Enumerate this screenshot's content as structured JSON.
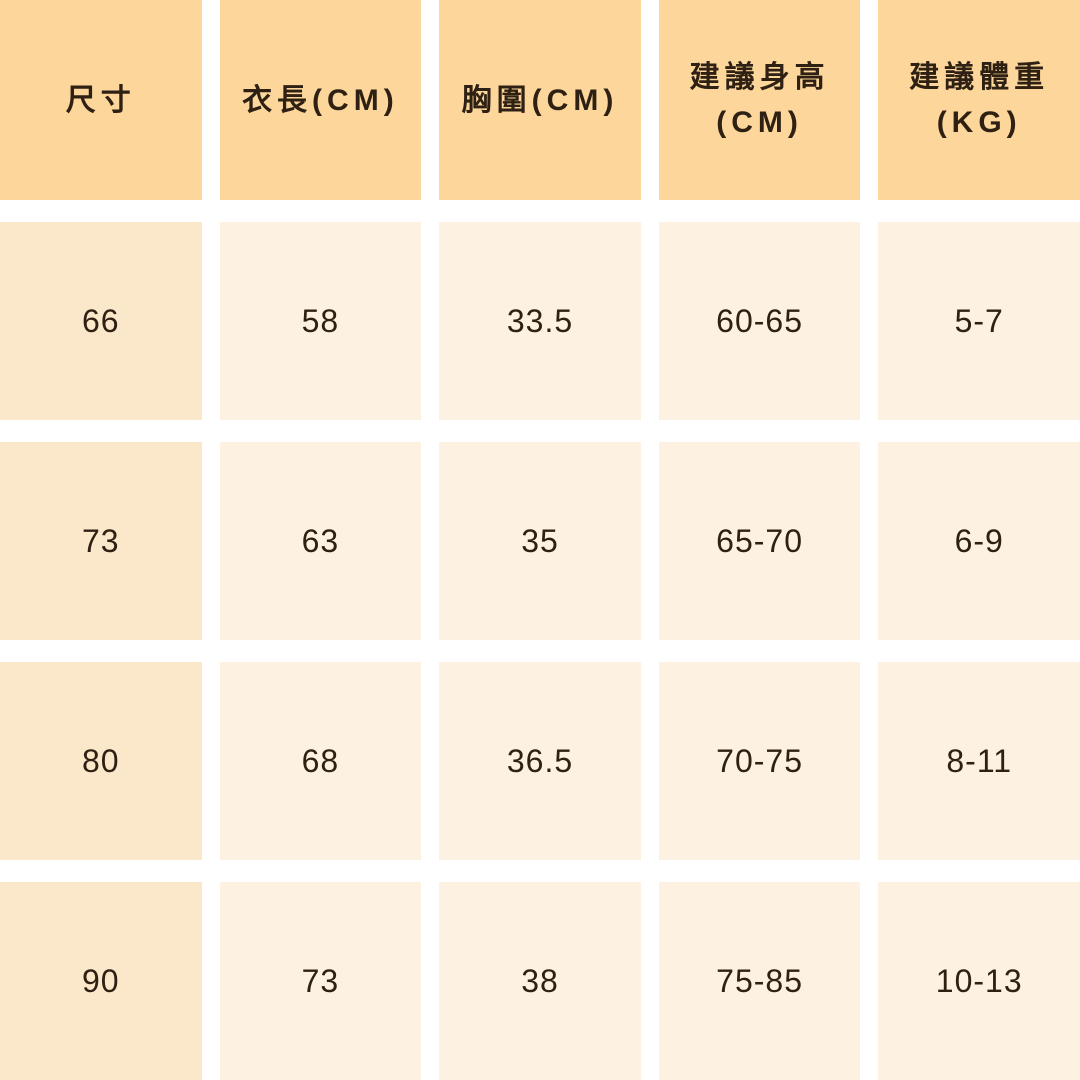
{
  "chart_data": {
    "type": "table",
    "columns": [
      "尺寸",
      "衣長(CM)",
      "胸圍(CM)",
      "建議身高(CM)",
      "建議體重(KG)"
    ],
    "rows": [
      [
        "66",
        "58",
        "33.5",
        "60-65",
        "5-7"
      ],
      [
        "73",
        "63",
        "35",
        "65-70",
        "6-9"
      ],
      [
        "80",
        "68",
        "36.5",
        "70-75",
        "8-11"
      ],
      [
        "90",
        "73",
        "38",
        "75-85",
        "10-13"
      ]
    ],
    "layout": {
      "header_position": "top",
      "grid": "white gutters between cells",
      "first_column_shaded": true
    }
  },
  "header_display": [
    "尺寸",
    "衣長(CM)",
    "胸圍(CM)",
    "建議身高\n(CM)",
    "建議體重\n(KG)"
  ],
  "colors": {
    "header_bg": "#fcd69b",
    "size_col_bg": "#fbe7c9",
    "cell_bg": "#fdf1e1",
    "text": "#2e2012",
    "gap": "#ffffff"
  }
}
